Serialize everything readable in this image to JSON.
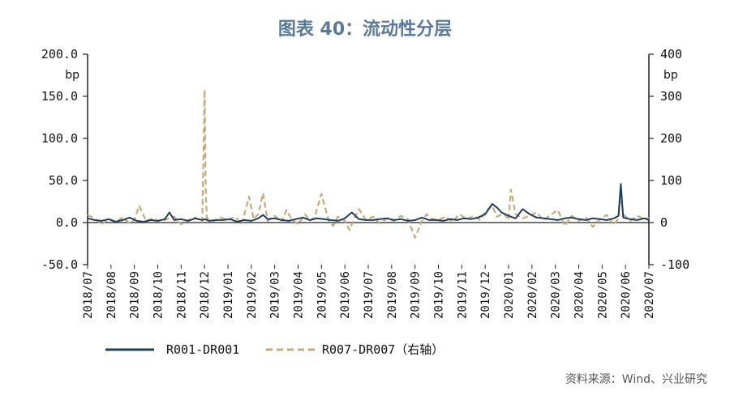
{
  "chart_data": {
    "type": "line",
    "title": "图表 40：流动性分层",
    "left_unit": "bp",
    "right_unit": "bp",
    "y_left": {
      "lim": [
        -50,
        200
      ],
      "ticks": [
        "200.0",
        "150.0",
        "100.0",
        "50.0",
        "0.0",
        "-50.0"
      ],
      "tick_values": [
        200,
        150,
        100,
        50,
        0,
        -50
      ]
    },
    "y_right": {
      "lim": [
        -100,
        400
      ],
      "ticks": [
        "400",
        "300",
        "200",
        "100",
        "0",
        "-100"
      ],
      "tick_values": [
        400,
        300,
        200,
        100,
        0,
        -100
      ]
    },
    "x_ticks": [
      "2018/07",
      "2018/08",
      "2018/09",
      "2018/10",
      "2018/11",
      "2018/12",
      "2019/01",
      "2019/02",
      "2019/03",
      "2019/04",
      "2019/05",
      "2019/06",
      "2019/07",
      "2019/08",
      "2019/09",
      "2019/10",
      "2019/11",
      "2019/12",
      "2020/01",
      "2020/02",
      "2020/03",
      "2020/04",
      "2020/05",
      "2020/06",
      "2020/07"
    ],
    "series": [
      {
        "name": "R001-DR001",
        "axis": "left",
        "color": "#1f3f5f",
        "dash": "solid",
        "x": [
          0,
          0.3,
          0.6,
          0.9,
          1.2,
          1.5,
          1.8,
          2.1,
          2.4,
          2.7,
          3.0,
          3.3,
          3.5,
          3.7,
          4.0,
          4.3,
          4.6,
          4.9,
          5.0,
          5.2,
          5.5,
          5.8,
          6.1,
          6.4,
          6.7,
          7.0,
          7.3,
          7.5,
          7.7,
          8.0,
          8.3,
          8.6,
          8.9,
          9.2,
          9.5,
          9.8,
          10.1,
          10.4,
          10.7,
          11.0,
          11.3,
          11.6,
          11.9,
          12.2,
          12.5,
          12.8,
          13.1,
          13.4,
          13.7,
          14.0,
          14.3,
          14.6,
          14.9,
          15.2,
          15.5,
          15.8,
          16.1,
          16.4,
          16.7,
          17.0,
          17.3,
          17.5,
          17.7,
          18.0,
          18.3,
          18.6,
          18.9,
          19.2,
          19.5,
          19.8,
          20.1,
          20.4,
          20.7,
          21.0,
          21.3,
          21.6,
          21.9,
          22.2,
          22.5,
          22.7,
          22.8,
          22.9,
          23.2,
          23.5,
          23.8,
          24.0
        ],
        "y": [
          5,
          3,
          2,
          4,
          1,
          3,
          6,
          2,
          1,
          3,
          2,
          4,
          12,
          3,
          4,
          2,
          5,
          3,
          4,
          2,
          3,
          3,
          4,
          1,
          3,
          2,
          5,
          9,
          4,
          5,
          3,
          2,
          4,
          6,
          3,
          5,
          4,
          3,
          2,
          5,
          12,
          4,
          3,
          3,
          4,
          5,
          3,
          4,
          2,
          3,
          6,
          3,
          3,
          2,
          4,
          3,
          5,
          4,
          6,
          10,
          22,
          18,
          12,
          8,
          5,
          16,
          10,
          6,
          5,
          4,
          3,
          5,
          6,
          4,
          3,
          5,
          4,
          3,
          5,
          8,
          46,
          6,
          4,
          3,
          5,
          3
        ]
      },
      {
        "name": "R007-DR007（右轴）",
        "axis": "right",
        "color": "#c9aa76",
        "dash": "7,4",
        "x": [
          0,
          0.3,
          0.6,
          0.9,
          1.2,
          1.5,
          1.8,
          2.0,
          2.2,
          2.5,
          2.8,
          3.1,
          3.4,
          3.7,
          4.0,
          4.3,
          4.6,
          4.9,
          4.95,
          5.0,
          5.05,
          5.1,
          5.4,
          5.7,
          6.0,
          6.3,
          6.6,
          6.9,
          7.1,
          7.3,
          7.5,
          7.7,
          8.0,
          8.3,
          8.5,
          8.7,
          9.0,
          9.3,
          9.5,
          9.7,
          10.0,
          10.3,
          10.5,
          10.7,
          11.0,
          11.2,
          11.4,
          11.6,
          11.9,
          12.2,
          12.5,
          12.8,
          13.1,
          13.4,
          13.7,
          14.0,
          14.3,
          14.5,
          14.7,
          15.0,
          15.3,
          15.6,
          15.9,
          16.2,
          16.5,
          16.8,
          17.0,
          17.3,
          17.5,
          17.8,
          18.0,
          18.1,
          18.3,
          18.6,
          18.9,
          19.2,
          19.5,
          19.8,
          20.1,
          20.4,
          20.7,
          21.0,
          21.3,
          21.6,
          21.9,
          22.2,
          22.5,
          22.7,
          22.8,
          22.9,
          23.2,
          23.5,
          23.8,
          24.0
        ],
        "y": [
          18,
          10,
          -4,
          8,
          2,
          12,
          -2,
          6,
          40,
          4,
          10,
          2,
          8,
          14,
          -4,
          6,
          12,
          2,
          140,
          316,
          80,
          10,
          4,
          12,
          6,
          14,
          -4,
          62,
          8,
          20,
          70,
          4,
          16,
          2,
          30,
          10,
          -4,
          20,
          4,
          12,
          68,
          6,
          -8,
          14,
          4,
          -18,
          10,
          32,
          6,
          14,
          -2,
          10,
          4,
          16,
          8,
          -36,
          4,
          20,
          10,
          6,
          14,
          2,
          20,
          8,
          16,
          6,
          26,
          40,
          14,
          22,
          6,
          78,
          20,
          10,
          16,
          24,
          6,
          18,
          30,
          -8,
          16,
          4,
          12,
          -10,
          8,
          18,
          -6,
          10,
          70,
          20,
          4,
          16,
          8,
          12
        ]
      }
    ],
    "legend": [
      {
        "label": "R001-DR001",
        "color": "#1f3f5f",
        "dash": "solid"
      },
      {
        "label": "R007-DR007（右轴）",
        "color": "#c9aa76",
        "dash": "dashed"
      }
    ],
    "legend_placement": "bottom",
    "grid": false
  },
  "source": "资料来源：Wind、兴业研究"
}
